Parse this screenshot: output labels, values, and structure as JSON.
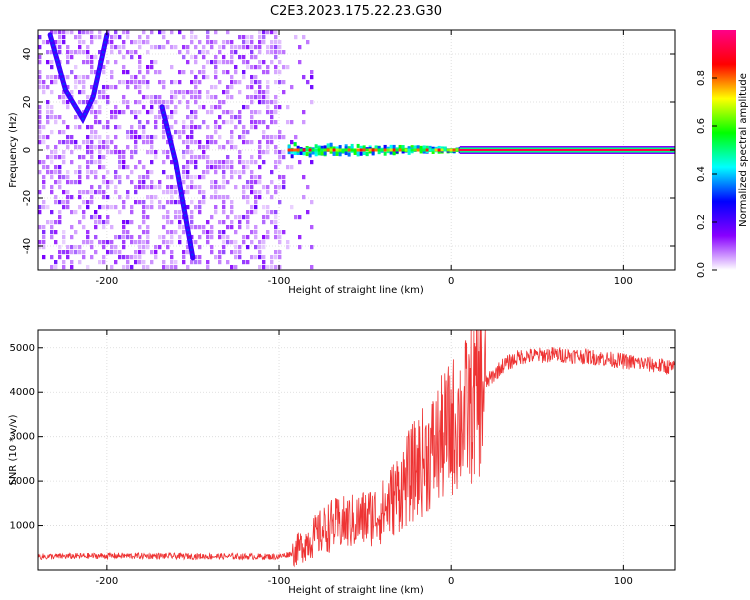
{
  "figure": {
    "title": "C2E3.2023.175.22.23.G30"
  },
  "chart_data": [
    {
      "type": "heatmap",
      "xlabel": "Height of straight line (km)",
      "ylabel": "Frequency (Hz)",
      "xlim": [
        -240,
        130
      ],
      "ylim": [
        -50,
        50
      ],
      "xticks": [
        -200,
        -100,
        0,
        100
      ],
      "yticks": [
        -40,
        -20,
        0,
        20,
        40
      ],
      "grid": true,
      "colorbar": {
        "label": "Normalized spectral amplitude",
        "range": [
          0,
          1
        ],
        "ticks": [
          0.0,
          0.2,
          0.4,
          0.6,
          0.8
        ],
        "colormap": [
          "#ffffff",
          "#8800ff",
          "#0000ff",
          "#00ffff",
          "#00ff00",
          "#ffff00",
          "#ff0000",
          "#ff0088"
        ]
      },
      "features": {
        "noise_region_x": [
          -240,
          -80
        ],
        "carrier_frequency": 0,
        "carrier_start_x": -95,
        "strong_carrier_start_x": 5,
        "curve_trace": [
          [
            -233,
            48
          ],
          [
            -224,
            25
          ],
          [
            -214,
            13
          ],
          [
            -208,
            22
          ],
          [
            -203,
            38
          ],
          [
            -200,
            48
          ]
        ],
        "line_trace": [
          [
            -168,
            18
          ],
          [
            -160,
            -5
          ],
          [
            -155,
            -25
          ],
          [
            -150,
            -45
          ]
        ]
      }
    },
    {
      "type": "line",
      "xlabel": "Height of straight line (km)",
      "ylabel": "SNR (10 * v/v)",
      "xlim": [
        -240,
        130
      ],
      "ylim": [
        0,
        5400
      ],
      "xticks": [
        -200,
        -100,
        0,
        100
      ],
      "yticks": [
        1000,
        2000,
        3000,
        4000,
        5000
      ],
      "grid": true,
      "series": [
        {
          "color": "#ee3333",
          "x": [
            -240,
            -200,
            -150,
            -100,
            -92,
            -85,
            -70,
            -55,
            -40,
            -30,
            -20,
            -10,
            0,
            10,
            20,
            30,
            40,
            60,
            80,
            100,
            120,
            130
          ],
          "y": [
            300,
            320,
            310,
            300,
            380,
            600,
            1000,
            1100,
            1300,
            1800,
            2300,
            2700,
            3200,
            3600,
            4200,
            4600,
            4800,
            4850,
            4800,
            4700,
            4600,
            4550
          ]
        }
      ]
    }
  ]
}
